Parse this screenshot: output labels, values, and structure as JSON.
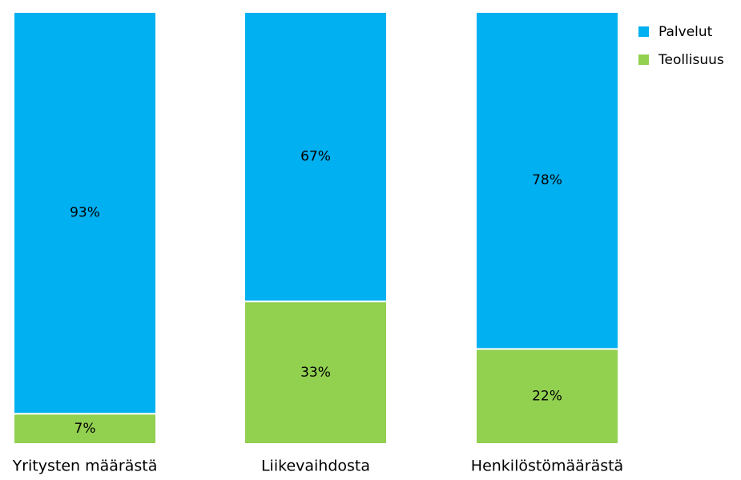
{
  "chart_data": {
    "type": "stacked_bar_100",
    "categories": [
      "Yritysten määrästä",
      "Liikevaihdosta",
      "Henkilöstömäärästä"
    ],
    "series": [
      {
        "name": "Palvelut",
        "color": "#00b0f0",
        "values": [
          93,
          67,
          78
        ],
        "value_labels": [
          "93%",
          "67%",
          "78%"
        ]
      },
      {
        "name": "Teollisuus",
        "color": "#92d050",
        "values": [
          7,
          33,
          22
        ],
        "value_labels": [
          "7%",
          "33%",
          "22%"
        ]
      }
    ],
    "legend": "top-right"
  }
}
